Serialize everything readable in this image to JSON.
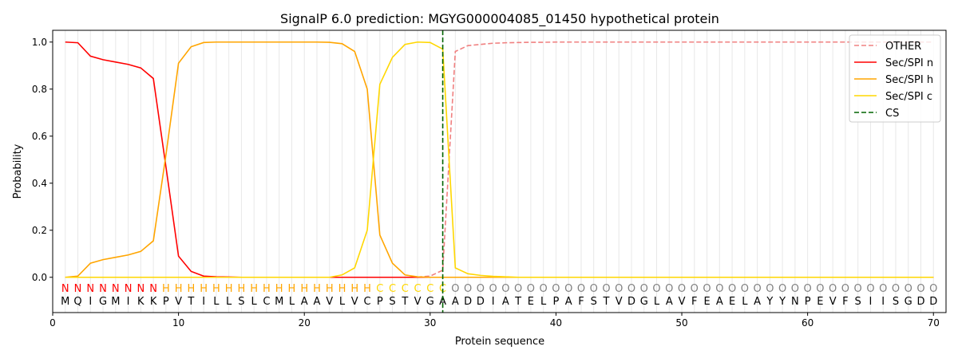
{
  "chart_data": {
    "type": "line",
    "title": "SignalP 6.0 prediction: MGYG000004085_01450 hypothetical protein",
    "xlabel": "Protein sequence",
    "ylabel": "Probability",
    "xlim": [
      0,
      71
    ],
    "ylim": [
      -0.15,
      1.05
    ],
    "xticks": [
      0,
      10,
      20,
      30,
      40,
      50,
      60,
      70
    ],
    "yticks": [
      0.0,
      0.2,
      0.4,
      0.6,
      0.8,
      1.0
    ],
    "legend_position": "top-right",
    "sequence": "MQIGMIKKPVTILLSLCMLAAVLVCPSTVGAADDIATELPAFSTVDGLAVFEAELAYYNPEVFSIISGDD",
    "labels": "NNNNNNNNHHHHHHHHHHHHHHHHHCCCCCCOOOOOOOOOOOOOOOOOOOOOOOOOOOOOOOOOOOOOOO",
    "label_colors": {
      "N": "#ff0000",
      "H": "#ffa500",
      "C": "#ffd700",
      "O": "#808080"
    },
    "cs_position": 31,
    "series": [
      {
        "name": "OTHER",
        "color": "#f08080",
        "dash": true,
        "values": [
          0,
          0,
          0,
          0,
          0,
          0,
          0,
          0,
          0,
          0,
          0,
          0,
          0,
          0,
          0,
          0,
          0,
          0,
          0,
          0,
          0,
          0,
          0,
          0,
          0,
          0,
          0,
          0,
          0.001,
          0.005,
          0.03,
          0.96,
          0.985,
          0.99,
          0.995,
          0.997,
          0.998,
          0.999,
          0.999,
          1,
          1,
          1,
          1,
          1,
          1,
          1,
          1,
          1,
          1,
          1,
          1,
          1,
          1,
          1,
          1,
          1,
          1,
          1,
          1,
          1,
          1,
          1,
          1,
          1,
          1,
          1,
          1,
          1,
          1,
          1
        ]
      },
      {
        "name": "Sec/SPI n",
        "color": "#ff0000",
        "dash": false,
        "values": [
          1.0,
          0.997,
          0.94,
          0.925,
          0.915,
          0.905,
          0.89,
          0.845,
          0.47,
          0.09,
          0.025,
          0.005,
          0.002,
          0.001,
          0,
          0,
          0,
          0,
          0,
          0,
          0,
          0,
          0,
          0,
          0,
          0,
          0,
          0,
          0,
          0,
          0,
          0,
          0,
          0,
          0,
          0,
          0,
          0,
          0,
          0,
          0,
          0,
          0,
          0,
          0,
          0,
          0,
          0,
          0,
          0,
          0,
          0,
          0,
          0,
          0,
          0,
          0,
          0,
          0,
          0,
          0,
          0,
          0,
          0,
          0,
          0,
          0,
          0,
          0,
          0
        ]
      },
      {
        "name": "Sec/SPI h",
        "color": "#ffa500",
        "dash": false,
        "values": [
          0,
          0.005,
          0.06,
          0.075,
          0.085,
          0.095,
          0.11,
          0.155,
          0.52,
          0.91,
          0.98,
          0.998,
          1,
          1,
          1,
          1,
          1,
          1,
          1,
          1,
          1,
          0.999,
          0.993,
          0.96,
          0.8,
          0.18,
          0.06,
          0.01,
          0.002,
          0,
          0,
          0,
          0,
          0,
          0,
          0,
          0,
          0,
          0,
          0,
          0,
          0,
          0,
          0,
          0,
          0,
          0,
          0,
          0,
          0,
          0,
          0,
          0,
          0,
          0,
          0,
          0,
          0,
          0,
          0,
          0,
          0,
          0,
          0,
          0,
          0,
          0,
          0,
          0,
          0
        ]
      },
      {
        "name": "Sec/SPI c",
        "color": "#ffd700",
        "dash": false,
        "values": [
          0,
          0,
          0,
          0,
          0,
          0,
          0,
          0,
          0,
          0,
          0,
          0,
          0,
          0,
          0,
          0,
          0,
          0,
          0,
          0,
          0,
          0,
          0.01,
          0.04,
          0.2,
          0.82,
          0.935,
          0.99,
          1.0,
          0.998,
          0.97,
          0.04,
          0.015,
          0.008,
          0.004,
          0.002,
          0,
          0,
          0,
          0,
          0,
          0,
          0,
          0,
          0,
          0,
          0,
          0,
          0,
          0,
          0,
          0,
          0,
          0,
          0,
          0,
          0,
          0,
          0,
          0,
          0,
          0,
          0,
          0,
          0,
          0,
          0,
          0,
          0,
          0
        ]
      },
      {
        "name": "CS",
        "color": "#006400",
        "dash": true,
        "values": []
      }
    ]
  }
}
